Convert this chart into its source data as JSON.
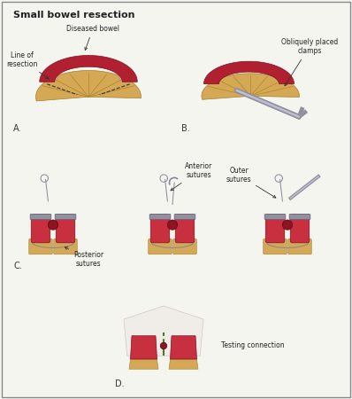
{
  "title": "Small bowel resection",
  "bg_color": "#f5f5f0",
  "border_color": "#888888",
  "labels": {
    "A_label": "A.",
    "B_label": "B.",
    "C_label": "C.",
    "D_label": "D.",
    "diseased_bowel": "Diseased bowel",
    "line_of_resection": "Line of\nresection",
    "obliquely_placed_clamps": "Obliquely placed\nclamps",
    "posterior_sutures": "Posterior\nsutures",
    "anterior_sutures": "Anterior\nsutures",
    "outer_sutures": "Outer\nsutures",
    "testing_connection": "Testing connection"
  },
  "colors": {
    "bowel_dark_red": "#b02030",
    "bowel_medium_red": "#c83040",
    "bowel_light_red": "#e07080",
    "tissue_yellow": "#d4a855",
    "tissue_light_yellow": "#e8c878",
    "tissue_pale": "#f0d898",
    "mesentery_pink": "#e8b0a0",
    "clamp_gray": "#9090a0",
    "suture_gray": "#888898",
    "white_tissue": "#f0ece8",
    "dark_red_spot": "#8b1520"
  }
}
